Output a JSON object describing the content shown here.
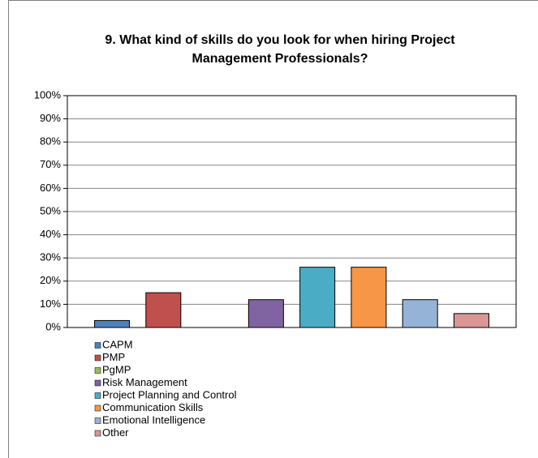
{
  "chart_data": {
    "type": "bar",
    "title": [
      "9. What kind of skills do you look for when hiring Project",
      "Management Professionals?"
    ],
    "ylim": [
      0,
      100
    ],
    "yticks": [
      {
        "value": 0,
        "label": "0%"
      },
      {
        "value": 10,
        "label": "10%"
      },
      {
        "value": 20,
        "label": "20%"
      },
      {
        "value": 30,
        "label": "30%"
      },
      {
        "value": 40,
        "label": "40%"
      },
      {
        "value": 50,
        "label": "50%"
      },
      {
        "value": 60,
        "label": "60%"
      },
      {
        "value": 70,
        "label": "70%"
      },
      {
        "value": 80,
        "label": "80%"
      },
      {
        "value": 90,
        "label": "90%"
      },
      {
        "value": 100,
        "label": "100%"
      }
    ],
    "grid": true,
    "series": [
      {
        "name": "CAPM",
        "color": "#4f81bd",
        "values": [
          3
        ]
      },
      {
        "name": "PMP",
        "color": "#c0504d",
        "values": [
          15
        ]
      },
      {
        "name": "PgMP",
        "color": "#9bbb59",
        "values": [
          0
        ]
      },
      {
        "name": "Risk Management",
        "color": "#8064a2",
        "values": [
          12
        ]
      },
      {
        "name": "Project Planning and Control",
        "color": "#4bacc6",
        "values": [
          26
        ]
      },
      {
        "name": "Communication Skills",
        "color": "#f79646",
        "values": [
          26
        ]
      },
      {
        "name": "Emotional Intelligence",
        "color": "#95b3d7",
        "values": [
          12
        ]
      },
      {
        "name": "Other",
        "color": "#d99694",
        "values": [
          6
        ]
      }
    ]
  }
}
